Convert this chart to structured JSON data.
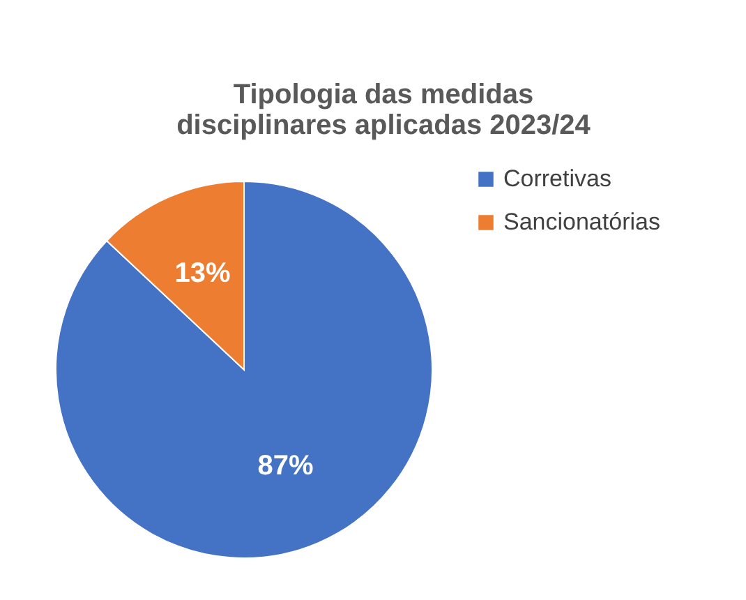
{
  "chart_data": {
    "type": "pie",
    "title": "Tipologia das medidas disciplinares aplicadas 2023/24",
    "categories": [
      "Corretivas",
      "Sancionatórias"
    ],
    "values": [
      87,
      13
    ],
    "colors": [
      "#4472c4",
      "#ed7d31"
    ],
    "value_labels": [
      "87%",
      "13%"
    ],
    "legend": "right"
  }
}
